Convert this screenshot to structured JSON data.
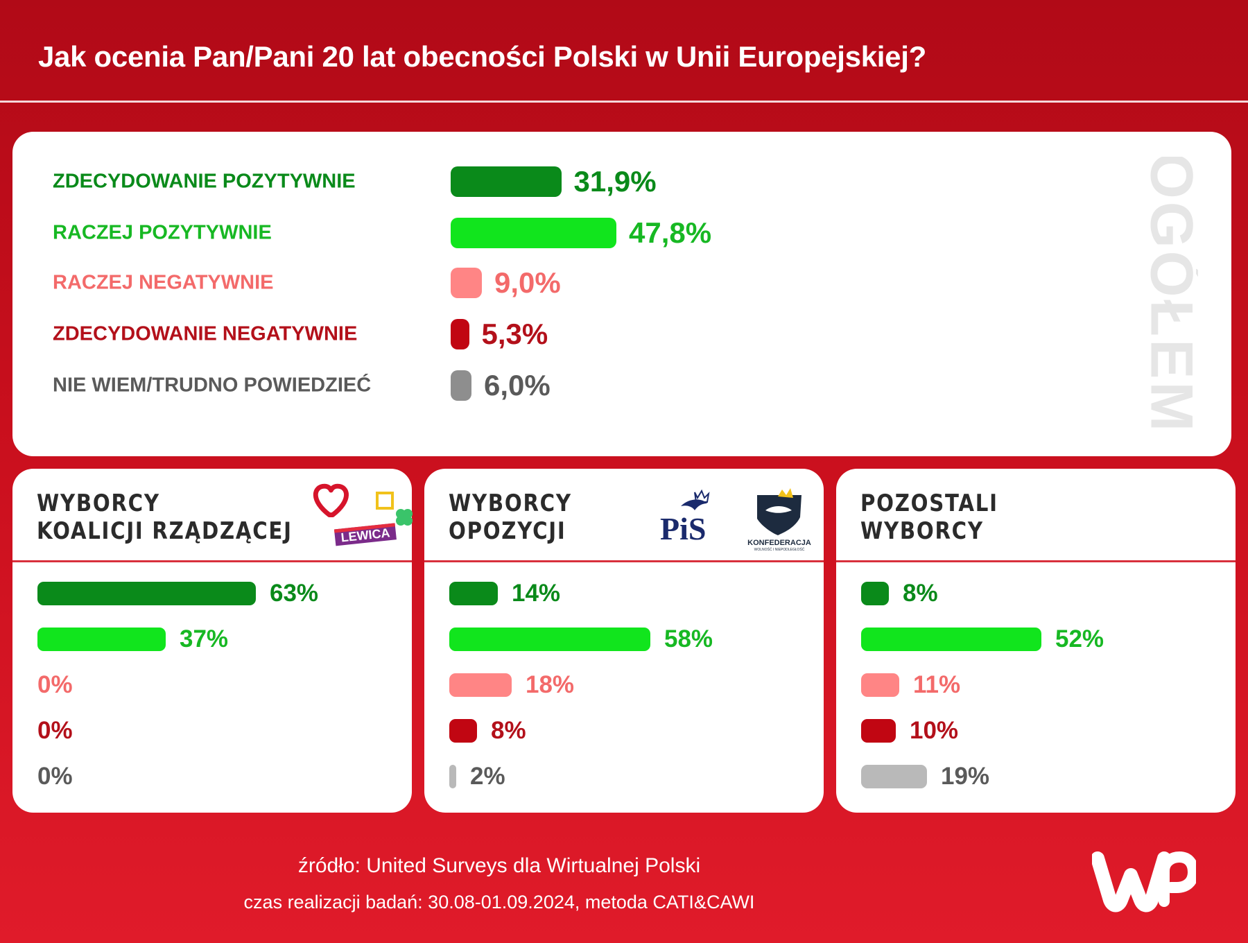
{
  "title": "Jak ocenia Pan/Pani 20 lat obecności Polski w Unii Europejskiej?",
  "colors": {
    "strong_positive": "#0a8a1a",
    "positive": "#11e51d",
    "negative": "#ff8585",
    "strong_negative": "#c10612",
    "dont_know_main": "#8e8e8e",
    "dont_know_sub": "#b9b9b9",
    "label_gray": "#5a5a5a"
  },
  "chart_data": [
    {
      "type": "bar",
      "panel": "OGÓŁEM",
      "categories": [
        "ZDECYDOWANIE POZYTYWNIE",
        "RACZEJ POZYTYWNIE",
        "RACZEJ NEGATYWNIE",
        "ZDECYDOWANIE NEGATYWNIE",
        "NIE WIEM/TRUDNO POWIEDZIEĆ"
      ],
      "values": [
        31.9,
        47.8,
        9.0,
        5.3,
        6.0
      ],
      "value_labels": [
        "31,9%",
        "47,8%",
        "9,0%",
        "5,3%",
        "6,0%"
      ],
      "orientation": "horizontal"
    },
    {
      "type": "bar",
      "panel_title": [
        "WYBORCY",
        "KOALICJI RZĄDZĄCEJ"
      ],
      "logo_text": [
        "LEWICA"
      ],
      "values": [
        63,
        37,
        0,
        0,
        0
      ],
      "value_labels": [
        "63%",
        "37%",
        "0%",
        "0%",
        "0%"
      ],
      "orientation": "horizontal"
    },
    {
      "type": "bar",
      "panel_title": [
        "WYBORCY",
        "OPOZYCJI"
      ],
      "logo_text": [
        "PiS",
        "KONFEDERACJA",
        "WOLNOŚĆ I NIEPODLEGŁOŚĆ"
      ],
      "values": [
        14,
        58,
        18,
        8,
        2
      ],
      "value_labels": [
        "14%",
        "58%",
        "18%",
        "8%",
        "2%"
      ],
      "orientation": "horizontal"
    },
    {
      "type": "bar",
      "panel_title": [
        "POZOSTALI",
        "WYBORCY"
      ],
      "values": [
        8,
        52,
        11,
        10,
        19
      ],
      "value_labels": [
        "8%",
        "52%",
        "11%",
        "10%",
        "19%"
      ],
      "orientation": "horizontal"
    }
  ],
  "footer": {
    "source": "źródło: United Surveys dla Wirtualnej Polski",
    "time": "czas realizacji badań: 30.08-01.09.2024, metoda CATI&CAWI"
  }
}
